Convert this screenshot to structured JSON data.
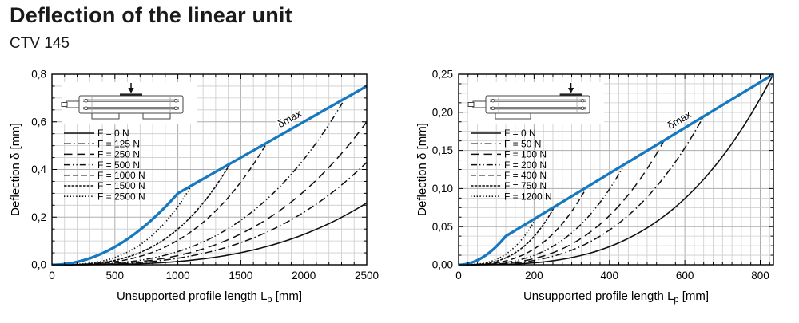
{
  "page": {
    "title": "Deflection of the linear unit",
    "subtitle": "CTV 145"
  },
  "colors": {
    "dmax_blue": "#1678BE",
    "series_black": "#101010",
    "grid_minor": "#cccccc",
    "grid_major": "#adadad",
    "frame": "#000000",
    "text": "#000000"
  },
  "chart_data": [
    {
      "type": "line",
      "name": "Deflection vs unsupported length, unit supported at both ends",
      "inset": {
        "support": "both-ends",
        "load": "center",
        "load_pos": 0.5
      },
      "xlabel": {
        "text": "Unsupported profile length L",
        "sub": "p",
        "unit": "[mm]"
      },
      "ylabel": "Deflection δ [mm]",
      "xlim": [
        0,
        2500
      ],
      "ylim": [
        0,
        0.8
      ],
      "xticks": {
        "values": [
          0,
          500,
          1000,
          1500,
          2000,
          2500
        ],
        "labels": [
          "0",
          "500",
          "1000",
          "1500",
          "2000",
          "2500"
        ],
        "minor_step": 100
      },
      "yticks": {
        "values": [
          0,
          0.2,
          0.4,
          0.6,
          0.8
        ],
        "labels": [
          "0,0",
          "0,2",
          "0,4",
          "0,6",
          "0,8"
        ],
        "minor_step": 0.05
      },
      "grid": true,
      "legend_position": "upper-left",
      "dmax": {
        "label": "δmax",
        "kink": [
          1000,
          0.3
        ],
        "end": [
          2500,
          0.75
        ],
        "label_x": 1900
      },
      "series": [
        {
          "name": "F = 0 N",
          "style": "solid",
          "end": [
            2500,
            0.26
          ],
          "exp": 3.2
        },
        {
          "name": "F = 125 N",
          "style": "dash-dot",
          "end": [
            2500,
            0.43
          ],
          "exp": 3.0
        },
        {
          "name": "F = 250 N",
          "style": "long-dash",
          "end": [
            2500,
            0.6
          ],
          "exp": 3.0
        },
        {
          "name": "F = 500 N",
          "style": "dash-dot-dot",
          "end": [
            2330,
            0.7
          ],
          "exp": 3.0
        },
        {
          "name": "F = 1000 N",
          "style": "dash",
          "end": [
            1705,
            0.51
          ],
          "exp": 3.0
        },
        {
          "name": "F = 1500 N",
          "style": "fine-solid",
          "end": [
            1410,
            0.42
          ],
          "exp": 3.0
        },
        {
          "name": "F = 2500 N",
          "style": "dotted",
          "end": [
            1105,
            0.33
          ],
          "exp": 3.0
        }
      ]
    },
    {
      "type": "line",
      "name": "Deflection vs unsupported length, cantilevered unit",
      "inset": {
        "support": "left-end",
        "load": "right-end",
        "load_pos": 0.82
      },
      "xlabel": {
        "text": "Unsupported profile length L",
        "sub": "p",
        "unit": "[mm]"
      },
      "ylabel": "Deflection δ [mm]",
      "xlim": [
        0,
        835
      ],
      "ylim": [
        0,
        0.25
      ],
      "xticks": {
        "values": [
          0,
          200,
          400,
          600,
          800
        ],
        "labels": [
          "0",
          "200",
          "400",
          "600",
          "800"
        ],
        "minor_step": 25
      },
      "yticks": {
        "values": [
          0,
          0.05,
          0.1,
          0.15,
          0.2,
          0.25
        ],
        "labels": [
          "0,00",
          "0,05",
          "0,10",
          "0,15",
          "0,20",
          "0,25"
        ],
        "minor_step": 0.0125
      },
      "grid": true,
      "legend_position": "upper-left",
      "dmax": {
        "label": "δmax",
        "kink": [
          125,
          0.0375
        ],
        "end": [
          835,
          0.25
        ],
        "label_x": 590
      },
      "series": [
        {
          "name": "F = 0 N",
          "style": "solid",
          "end": [
            835,
            0.25
          ],
          "exp": 3.2
        },
        {
          "name": "F = 50 N",
          "style": "dash-dot",
          "end": [
            650,
            0.195
          ],
          "exp": 3.0
        },
        {
          "name": "F = 100 N",
          "style": "long-dash",
          "end": [
            545,
            0.163
          ],
          "exp": 3.0
        },
        {
          "name": "F = 200 N",
          "style": "dash-dot-dot",
          "end": [
            440,
            0.132
          ],
          "exp": 3.0
        },
        {
          "name": "F = 400 N",
          "style": "dash",
          "end": [
            340,
            0.102
          ],
          "exp": 3.0
        },
        {
          "name": "F = 750 N",
          "style": "fine-solid",
          "end": [
            255,
            0.077
          ],
          "exp": 3.0
        },
        {
          "name": "F = 1200 N",
          "style": "dotted",
          "end": [
            205,
            0.061
          ],
          "exp": 3.0
        }
      ]
    }
  ]
}
